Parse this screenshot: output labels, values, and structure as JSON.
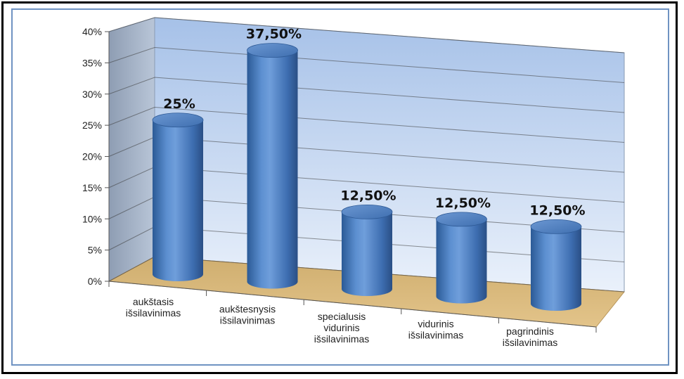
{
  "chart_data": {
    "type": "bar",
    "style": "3d-cylinder",
    "categories": [
      "aukštasis išsilavinimas",
      "aukštesnysis išsilavinimas",
      "specialusis vidurinis išsilavinimas",
      "vidurinis išsilavinimas",
      "pagrindinis išsilavinimas"
    ],
    "category_lines": [
      [
        "aukštasis",
        "išsilavinimas"
      ],
      [
        "aukštesnysis",
        "išsilavinimas"
      ],
      [
        "specialusis",
        "vidurinis",
        "išsilavinimas"
      ],
      [
        "vidurinis",
        "išsilavinimas"
      ],
      [
        "pagrindinis",
        "išsilavinimas"
      ]
    ],
    "values": [
      25,
      37.5,
      12.5,
      12.5,
      12.5
    ],
    "data_labels": [
      "25%",
      "37,50%",
      "12,50%",
      "12,50%",
      "12,50%"
    ],
    "y_ticks": [
      "0%",
      "5%",
      "10%",
      "15%",
      "20%",
      "25%",
      "30%",
      "35%",
      "40%"
    ],
    "ylim": [
      0,
      40
    ],
    "grid": true,
    "legend": "none",
    "title": "",
    "xlabel": "",
    "ylabel": "",
    "colors": {
      "bar": "#4f81bd",
      "bar_dark": "#2a5288",
      "bar_light": "#8fb3e0",
      "wall_back_top": "#a9c4ea",
      "wall_back_bottom": "#e8f0fa",
      "wall_side": "#9aa9bd",
      "floor": "#d9b878",
      "frame": "#6f93c2"
    }
  }
}
